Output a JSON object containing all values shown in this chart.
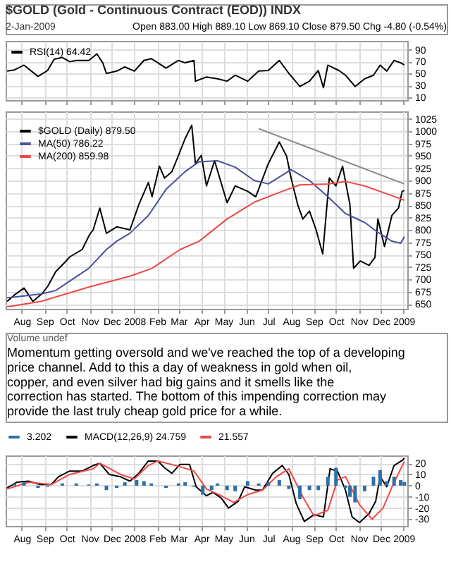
{
  "chart_data": [
    {
      "type": "line",
      "title": "$GOLD (Gold - Continuous Contract (EOD)) INDX",
      "subtitle": "2-Jan-2009",
      "annotations": [
        "Open 883.00 High 889.10 Low 869.10 Close 879.50 Chg -4.80 (-0.54%)"
      ],
      "series": [
        {
          "name": "RSI(14) 64.42",
          "color": "#000000",
          "x": [
            "2007-07-12",
            "2007-07-22",
            "2007-08-04",
            "2007-08-23",
            "2007-09-05",
            "2007-09-14",
            "2007-09-25",
            "2007-10-05",
            "2007-10-14",
            "2007-10-31",
            "2007-11-11",
            "2007-11-19",
            "2007-11-24",
            "2007-12-08",
            "2007-12-19",
            "2008-01-01",
            "2008-01-14",
            "2008-01-24",
            "2008-02-02",
            "2008-02-13",
            "2008-03-01",
            "2008-03-10",
            "2008-03-22",
            "2008-03-24",
            "2008-04-08",
            "2008-04-23",
            "2008-05-06",
            "2008-05-17",
            "2008-06-03",
            "2008-06-18",
            "2008-07-01",
            "2008-07-16",
            "2008-07-29",
            "2008-08-13",
            "2008-08-26",
            "2008-09-07",
            "2008-09-14",
            "2008-09-20",
            "2008-10-05",
            "2008-10-14",
            "2008-10-27",
            "2008-11-09",
            "2008-11-21",
            "2008-11-30",
            "2008-12-09",
            "2008-12-19",
            "2008-12-28",
            "2009-01-02"
          ],
          "values": [
            54,
            56,
            64,
            45,
            55,
            74,
            77,
            70,
            72,
            72,
            83,
            68,
            50,
            54,
            61,
            54,
            72,
            75,
            68,
            59,
            72,
            68,
            72,
            37,
            44,
            41,
            37,
            47,
            37,
            54,
            55,
            72,
            50,
            28,
            37,
            55,
            26,
            64,
            55,
            47,
            28,
            41,
            47,
            64,
            54,
            72,
            68,
            64.42
          ]
        }
      ],
      "xlim": [
        "2007-07-10",
        "2009-01-06"
      ],
      "xticks": [
        {
          "value": "2007-08-01",
          "label": null
        },
        {
          "value": "2007-09-01",
          "label": null
        },
        {
          "value": "2007-10-01",
          "label": null
        },
        {
          "value": "2007-11-01",
          "label": null
        },
        {
          "value": "2007-12-01",
          "label": null
        },
        {
          "value": "2008-01-01",
          "label": null
        },
        {
          "value": "2008-02-01",
          "label": null
        },
        {
          "value": "2008-03-01",
          "label": null
        },
        {
          "value": "2008-04-01",
          "label": null
        },
        {
          "value": "2008-05-01",
          "label": null
        },
        {
          "value": "2008-06-01",
          "label": null
        },
        {
          "value": "2008-07-01",
          "label": null
        },
        {
          "value": "2008-08-01",
          "label": null
        },
        {
          "value": "2008-09-01",
          "label": null
        },
        {
          "value": "2008-10-01",
          "label": null
        },
        {
          "value": "2008-11-01",
          "label": null
        },
        {
          "value": "2008-12-01",
          "label": null
        },
        {
          "value": "2009-01-01",
          "label": null
        }
      ],
      "ylim": [
        5,
        105
      ],
      "yticks": [
        10,
        30,
        50,
        70,
        90
      ],
      "tick_labels": "y",
      "grid": true,
      "legend": "top left"
    },
    {
      "type": "line",
      "annotations": [
        "Volume undef",
        "Momentum getting oversold and we've reached the top of a developing price channel. Add to this a day of weakness in gold when oil, copper, and even silver had big gains and it smells like the correction has started. The bottom of this impending correction may provide the last truly cheap gold price for a while."
      ],
      "series": [
        {
          "name": "$GOLD (Daily) 879.50",
          "color": "#000000",
          "x": [
            "2007-07-12",
            "2007-07-22",
            "2007-08-04",
            "2007-08-16",
            "2007-08-28",
            "2007-09-05",
            "2007-09-16",
            "2007-09-29",
            "2007-10-05",
            "2007-10-22",
            "2007-11-01",
            "2007-11-06",
            "2007-11-15",
            "2007-11-24",
            "2007-12-08",
            "2007-12-26",
            "2008-01-07",
            "2008-01-20",
            "2008-01-25",
            "2008-02-04",
            "2008-02-11",
            "2008-02-21",
            "2008-03-01",
            "2008-03-10",
            "2008-03-19",
            "2008-03-24",
            "2008-04-01",
            "2008-04-08",
            "2008-04-19",
            "2008-05-06",
            "2008-05-17",
            "2008-06-03",
            "2008-06-14",
            "2008-07-01",
            "2008-07-16",
            "2008-07-26",
            "2008-08-01",
            "2008-08-10",
            "2008-08-17",
            "2008-08-26",
            "2008-09-04",
            "2008-09-13",
            "2008-09-22",
            "2008-10-01",
            "2008-10-10",
            "2008-10-20",
            "2008-10-25",
            "2008-11-03",
            "2008-11-15",
            "2008-11-23",
            "2008-11-27",
            "2008-12-06",
            "2008-12-16",
            "2008-12-25",
            "2008-12-30",
            "2009-01-02"
          ],
          "values": [
            655,
            668,
            682,
            655,
            670,
            685,
            715,
            735,
            745,
            760,
            790,
            800,
            844,
            793,
            806,
            800,
            851,
            896,
            867,
            929,
            905,
            918,
            951,
            985,
            1012,
            934,
            951,
            889,
            940,
            855,
            889,
            878,
            867,
            934,
            978,
            949,
            905,
            851,
            822,
            838,
            800,
            751,
            905,
            889,
            929,
            851,
            722,
            737,
            728,
            744,
            822,
            766,
            829,
            844,
            878,
            879.5
          ]
        },
        {
          "name": "MA(50) 786.22",
          "color": "#4a4f9e",
          "x": [
            "2007-07-12",
            "2007-08-27",
            "2007-09-16",
            "2007-10-31",
            "2007-11-24",
            "2007-12-08",
            "2007-12-26",
            "2008-01-20",
            "2008-02-13",
            "2008-03-10",
            "2008-03-29",
            "2008-04-23",
            "2008-05-17",
            "2008-06-12",
            "2008-07-01",
            "2008-07-16",
            "2008-08-01",
            "2008-08-26",
            "2008-09-20",
            "2008-10-14",
            "2008-11-09",
            "2008-11-27",
            "2008-12-16",
            "2008-12-28",
            "2009-01-02"
          ],
          "values": [
            662,
            670,
            677,
            722,
            760,
            777,
            793,
            829,
            882,
            918,
            938,
            940,
            927,
            900,
            893,
            907,
            922,
            900,
            867,
            833,
            815,
            795,
            777,
            773,
            786.22
          ]
        },
        {
          "name": "MA(200) 859.98",
          "color": "#f04848",
          "x": [
            "2007-07-12",
            "2007-08-27",
            "2007-10-31",
            "2007-12-26",
            "2008-01-25",
            "2008-03-03",
            "2008-03-29",
            "2008-05-06",
            "2008-06-12",
            "2008-07-20",
            "2008-08-13",
            "2008-09-20",
            "2008-10-14",
            "2008-11-09",
            "2008-12-09",
            "2009-01-02"
          ],
          "values": [
            644,
            655,
            684,
            706,
            722,
            760,
            777,
            822,
            856,
            878,
            891,
            893,
            898,
            889,
            873,
            859.98
          ]
        },
        {
          "color": "#8c8c8c",
          "x": [
            "2008-06-18",
            "2009-01-02"
          ],
          "values": [
            1005,
            893
          ]
        }
      ],
      "xlim": [
        "2007-07-10",
        "2009-01-06"
      ],
      "xticks": [
        {
          "value": "2007-08-01",
          "label": "Aug"
        },
        {
          "value": "2007-09-01",
          "label": "Sep"
        },
        {
          "value": "2007-10-01",
          "label": "Oct"
        },
        {
          "value": "2007-11-01",
          "label": "Nov"
        },
        {
          "value": "2007-12-01",
          "label": "Dec"
        },
        {
          "value": "2008-01-01",
          "label": "2008"
        },
        {
          "value": "2008-02-01",
          "label": "Feb"
        },
        {
          "value": "2008-03-01",
          "label": "Mar"
        },
        {
          "value": "2008-04-01",
          "label": "Apr"
        },
        {
          "value": "2008-05-01",
          "label": "May"
        },
        {
          "value": "2008-06-01",
          "label": "Jun"
        },
        {
          "value": "2008-07-01",
          "label": "Jul"
        },
        {
          "value": "2008-08-01",
          "label": "Aug"
        },
        {
          "value": "2008-09-01",
          "label": "Sep"
        },
        {
          "value": "2008-10-01",
          "label": "Oct"
        },
        {
          "value": "2008-11-01",
          "label": "Nov"
        },
        {
          "value": "2008-12-01",
          "label": "Dec"
        },
        {
          "value": "2009-01-01",
          "label": "2009"
        }
      ],
      "ylim": [
        640,
        1040
      ],
      "yticks": [
        650,
        675,
        700,
        725,
        750,
        775,
        800,
        825,
        850,
        875,
        900,
        925,
        950,
        975,
        1000,
        1025
      ],
      "grid": true,
      "legend": "top left"
    },
    {
      "type": "line",
      "series": [
        {
          "name": "3.202",
          "type": "bar",
          "color": "#2f6fa8",
          "x": [
            "2007-07-22",
            "2007-08-04",
            "2007-08-23",
            "2007-09-05",
            "2007-09-25",
            "2007-10-14",
            "2007-10-31",
            "2007-11-11",
            "2007-11-24",
            "2007-12-08",
            "2007-12-19",
            "2008-01-04",
            "2008-01-14",
            "2008-01-24",
            "2008-02-13",
            "2008-03-01",
            "2008-03-10",
            "2008-03-22",
            "2008-04-03",
            "2008-04-15",
            "2008-04-23",
            "2008-05-06",
            "2008-05-17",
            "2008-06-03",
            "2008-06-18",
            "2008-07-01",
            "2008-07-16",
            "2008-07-29",
            "2008-08-13",
            "2008-08-26",
            "2008-09-07",
            "2008-09-20",
            "2008-10-01",
            "2008-10-14",
            "2008-10-20",
            "2008-10-27",
            "2008-11-09",
            "2008-11-21",
            "2008-11-30",
            "2008-12-09",
            "2008-12-19",
            "2008-12-28",
            "2009-01-02"
          ],
          "values": [
            2,
            3,
            -2,
            -1,
            2,
            2,
            1,
            2,
            -4,
            -2,
            3,
            5,
            4,
            2,
            -2,
            2,
            3,
            -1,
            -8,
            -4,
            2,
            -4,
            -5,
            4,
            2,
            3,
            5,
            -3,
            -12,
            -4,
            -4,
            8,
            16,
            -2,
            -10,
            -15,
            -5,
            8,
            14,
            4,
            8,
            5,
            3.202
          ]
        },
        {
          "name": "MACD(12,26,9) 24.759",
          "color": "#000000",
          "x": [
            "2007-07-12",
            "2007-07-25",
            "2007-08-10",
            "2007-08-26",
            "2007-09-10",
            "2007-09-20",
            "2007-10-05",
            "2007-10-22",
            "2007-11-06",
            "2007-11-15",
            "2007-11-28",
            "2007-12-13",
            "2007-12-26",
            "2008-01-07",
            "2008-01-20",
            "2008-02-02",
            "2008-02-11",
            "2008-02-21",
            "2008-03-03",
            "2008-03-16",
            "2008-03-25",
            "2008-04-08",
            "2008-04-17",
            "2008-04-28",
            "2008-05-08",
            "2008-05-21",
            "2008-05-30",
            "2008-06-14",
            "2008-06-23",
            "2008-07-07",
            "2008-07-20",
            "2008-07-29",
            "2008-08-08",
            "2008-08-19",
            "2008-09-01",
            "2008-09-14",
            "2008-09-23",
            "2008-10-03",
            "2008-10-14",
            "2008-10-23",
            "2008-11-02",
            "2008-11-15",
            "2008-11-24",
            "2008-11-30",
            "2008-12-09",
            "2008-12-19",
            "2008-12-31",
            "2009-01-02"
          ],
          "values": [
            -2,
            3,
            4,
            1,
            1,
            8,
            13,
            13,
            18,
            20,
            10,
            8,
            4,
            11,
            22,
            22,
            16,
            11,
            19,
            19,
            -1,
            -9,
            -6,
            -11,
            -20,
            -14,
            -1,
            -4,
            -4,
            11,
            18,
            10,
            -16,
            -32,
            -26,
            -28,
            15,
            13,
            -4,
            -28,
            -33,
            -25,
            -14,
            8,
            -1,
            18,
            23,
            24.759
          ]
        },
        {
          "name": "21.557",
          "color": "#f04848",
          "x": [
            "2007-07-12",
            "2007-08-10",
            "2007-09-10",
            "2007-10-05",
            "2007-11-06",
            "2007-11-15",
            "2007-12-13",
            "2008-01-01",
            "2008-01-20",
            "2008-02-02",
            "2008-03-03",
            "2008-03-22",
            "2008-04-08",
            "2008-04-28",
            "2008-05-15",
            "2008-06-03",
            "2008-06-23",
            "2008-07-12",
            "2008-07-29",
            "2008-08-17",
            "2008-09-01",
            "2008-09-20",
            "2008-10-03",
            "2008-10-14",
            "2008-11-02",
            "2008-11-19",
            "2008-12-04",
            "2008-12-17",
            "2008-12-28",
            "2009-01-02"
          ],
          "values": [
            -3,
            3,
            1,
            10,
            15,
            20,
            10,
            6,
            18,
            22,
            17,
            13,
            -3,
            -9,
            -15,
            -8,
            -4,
            8,
            15,
            -10,
            -27,
            -22,
            5,
            8,
            -17,
            -30,
            -20,
            0,
            15,
            21.557
          ]
        }
      ],
      "xlim": [
        "2007-07-10",
        "2009-01-06"
      ],
      "xticks": [
        {
          "value": "2007-08-01",
          "label": "Aug"
        },
        {
          "value": "2007-09-01",
          "label": "Sep"
        },
        {
          "value": "2007-10-01",
          "label": "Oct"
        },
        {
          "value": "2007-11-01",
          "label": "Nov"
        },
        {
          "value": "2007-12-01",
          "label": "Dec"
        },
        {
          "value": "2008-01-01",
          "label": "2008"
        },
        {
          "value": "2008-02-01",
          "label": "Feb"
        },
        {
          "value": "2008-03-01",
          "label": "Mar"
        },
        {
          "value": "2008-04-01",
          "label": "Apr"
        },
        {
          "value": "2008-05-01",
          "label": "May"
        },
        {
          "value": "2008-06-01",
          "label": "Jun"
        },
        {
          "value": "2008-07-01",
          "label": "Jul"
        },
        {
          "value": "2008-08-01",
          "label": "Aug"
        },
        {
          "value": "2008-09-01",
          "label": "Sep"
        },
        {
          "value": "2008-10-01",
          "label": "Oct"
        },
        {
          "value": "2008-11-01",
          "label": "Nov"
        },
        {
          "value": "2008-12-01",
          "label": "Dec"
        },
        {
          "value": "2009-01-01",
          "label": "2009"
        }
      ],
      "ylim": [
        -36,
        27
      ],
      "yticks": [
        -30,
        -20,
        -10,
        0,
        10,
        20
      ],
      "grid": true,
      "legend": "top"
    }
  ]
}
